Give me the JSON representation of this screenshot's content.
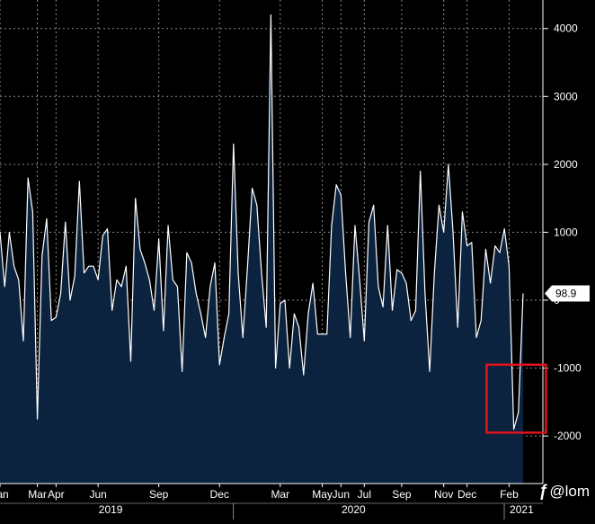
{
  "chart_data": {
    "type": "area",
    "colors": {
      "background": "#000000",
      "fill": "#0c2340",
      "line": "#ffffff",
      "grid": "#8a8a8a",
      "highlight": "#e0141e"
    },
    "y_ticks": [
      4000,
      3000,
      2000,
      1000,
      0,
      -1000,
      -2000
    ],
    "y_tick_labels": [
      "4000",
      "3000",
      "2000",
      "1000",
      "0",
      "-1000",
      "-2000"
    ],
    "ylim": [
      -2700,
      4420
    ],
    "x_ticks": [
      {
        "label": "Jan",
        "index": 0
      },
      {
        "label": "Mar",
        "index": 8
      },
      {
        "label": "Apr",
        "index": 12
      },
      {
        "label": "Jun",
        "index": 21
      },
      {
        "label": "Sep",
        "index": 34
      },
      {
        "label": "Dec",
        "index": 47
      },
      {
        "label": "Mar",
        "index": 60
      },
      {
        "label": "May",
        "index": 69
      },
      {
        "label": "Jun",
        "index": 73
      },
      {
        "label": "Jul",
        "index": 78
      },
      {
        "label": "Sep",
        "index": 86
      },
      {
        "label": "Nov",
        "index": 95
      },
      {
        "label": "Dec",
        "index": 100
      },
      {
        "label": "Feb",
        "index": 109
      }
    ],
    "year_labels": [
      {
        "label": "2019",
        "index": 21
      },
      {
        "label": "2020",
        "index": 73
      },
      {
        "label": "2021",
        "index": 109
      }
    ],
    "series": [
      {
        "values": [
          1000,
          200,
          1000,
          500,
          300,
          -600,
          1800,
          1300,
          -1750,
          650,
          1200,
          -300,
          -250,
          100,
          1150,
          0,
          350,
          1750,
          400,
          500,
          500,
          300,
          950,
          1050,
          -150,
          300,
          200,
          500,
          -900,
          1500,
          750,
          550,
          300,
          -150,
          900,
          -450,
          1100,
          300,
          200,
          -1050,
          700,
          550,
          100,
          -200,
          -550,
          200,
          550,
          -950,
          -550,
          -200,
          2300,
          400,
          -550,
          500,
          1650,
          1400,
          400,
          -400,
          4200,
          -1000,
          -50,
          0,
          -1000,
          -200,
          -400,
          -1100,
          -200,
          250,
          -500,
          -500,
          -500,
          1100,
          1700,
          1550,
          400,
          -550,
          1100,
          300,
          -600,
          1150,
          1400,
          200,
          -100,
          1100,
          -150,
          450,
          400,
          250,
          -300,
          -150,
          1900,
          100,
          -1050,
          400,
          1400,
          1000,
          2000,
          1000,
          -400,
          1300,
          800,
          850,
          -550,
          -300,
          750,
          250,
          800,
          700,
          1050,
          500,
          -1900,
          -1650,
          98.9
        ]
      }
    ],
    "last_value": "98.9",
    "grid": true,
    "highlight_box": true
  },
  "brand": {
    "text": "@lom"
  }
}
